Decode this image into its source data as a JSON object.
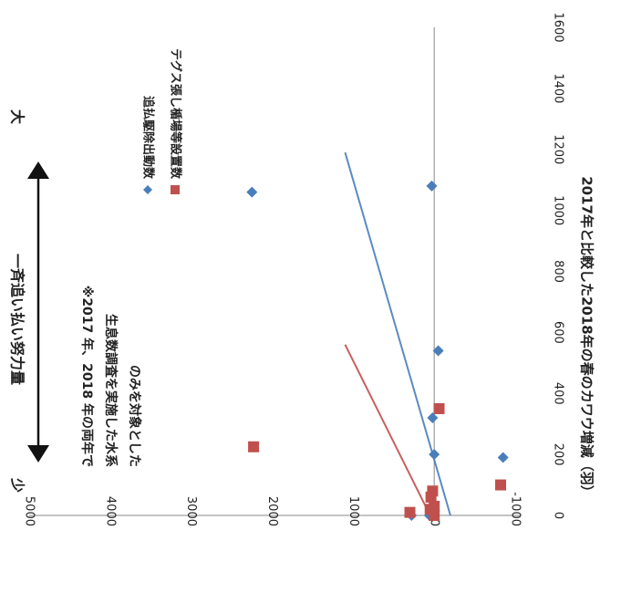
{
  "chart_data": {
    "type": "scatter",
    "orientation": "rotated-90-clockwise",
    "title": "",
    "xlabel": "",
    "ylabel": "2017年と比較した2018年の春のカワウ増減（羽）",
    "xlim": [
      0,
      1600
    ],
    "ylim": [
      -1000,
      5000
    ],
    "x_ticks": [
      "0",
      "200",
      "400",
      "600",
      "800",
      "1000",
      "1200",
      "1400",
      "1600"
    ],
    "y_ticks": [
      "-1000",
      "0",
      "1000",
      "2000",
      "3000",
      "4000",
      "5000"
    ],
    "grid": false,
    "legend_position": "top-right",
    "series": [
      {
        "name": "追払駆除出動数",
        "color": "#4a7ebb",
        "marker": "diamond",
        "points": [
          {
            "x": 1080,
            "y": 30
          },
          {
            "x": 1060,
            "y": 2250
          },
          {
            "x": 540,
            "y": -50
          },
          {
            "x": 320,
            "y": 20
          },
          {
            "x": 200,
            "y": 0
          },
          {
            "x": 190,
            "y": -850
          },
          {
            "x": 0,
            "y": 280
          },
          {
            "x": 0,
            "y": 60
          }
        ],
        "trendline": {
          "x": [
            0,
            1190
          ],
          "y": [
            -200,
            1100
          ]
        }
      },
      {
        "name": "テグス張し楯場等設置数",
        "color": "#c0504d",
        "marker": "square",
        "points": [
          {
            "x": 350,
            "y": -60
          },
          {
            "x": 225,
            "y": 2230
          },
          {
            "x": 100,
            "y": -820
          },
          {
            "x": 80,
            "y": 20
          },
          {
            "x": 60,
            "y": 40
          },
          {
            "x": 30,
            "y": 0
          },
          {
            "x": 20,
            "y": 50
          },
          {
            "x": 10,
            "y": 300
          },
          {
            "x": 0,
            "y": 0
          }
        ],
        "trendline": {
          "x": [
            0,
            560
          ],
          "y": [
            50,
            1100
          ]
        }
      }
    ],
    "annotations": {
      "effort_label": "一斉追い払い努力量",
      "low": "少",
      "high": "大",
      "note_lines": [
        "※2017 年、2018 年の両年で",
        "生息数調査を実施した水系",
        "のみを対象とした"
      ]
    }
  }
}
